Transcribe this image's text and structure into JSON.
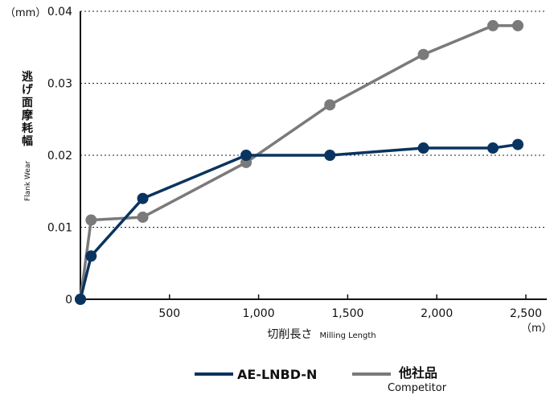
{
  "chart_data": {
    "type": "line",
    "y_unit": "（mm）",
    "x_unit": "（m）",
    "xlabel_jp": "切削長さ",
    "xlabel_en": "Milling Length",
    "ylabel_jp_chars": [
      "逃",
      "げ",
      "面",
      "摩",
      "耗",
      "幅"
    ],
    "ylabel_en": "Flank Wear",
    "xlim": [
      0,
      2550
    ],
    "ylim": [
      0,
      0.04
    ],
    "x_ticks": [
      500,
      1000,
      1500,
      2000,
      2500
    ],
    "x_tick_labels": [
      "500",
      "1,000",
      "1,500",
      "2,000",
      "2,500"
    ],
    "y_ticks": [
      0,
      0.01,
      0.02,
      0.03,
      0.04
    ],
    "y_tick_labels": [
      "0",
      "0.01",
      "0.02",
      "0.03",
      "0.04"
    ],
    "grid": "horizontal-dotted",
    "legend_placement": "bottom-center",
    "series": [
      {
        "name": "AE-LNBD-N",
        "color": "#0a3460",
        "points": [
          [
            0,
            0
          ],
          [
            60,
            0.006
          ],
          [
            350,
            0.014
          ],
          [
            930,
            0.02
          ],
          [
            1400,
            0.02
          ],
          [
            1925,
            0.021
          ],
          [
            2315,
            0.021
          ],
          [
            2455,
            0.0215
          ]
        ]
      },
      {
        "name": "他社品",
        "name_en": "Competitor",
        "color": "#7a7a7a",
        "points": [
          [
            0,
            0
          ],
          [
            60,
            0.011
          ],
          [
            350,
            0.0114
          ],
          [
            930,
            0.019
          ],
          [
            1400,
            0.027
          ],
          [
            1925,
            0.034
          ],
          [
            2315,
            0.038
          ],
          [
            2455,
            0.038
          ]
        ]
      }
    ]
  }
}
